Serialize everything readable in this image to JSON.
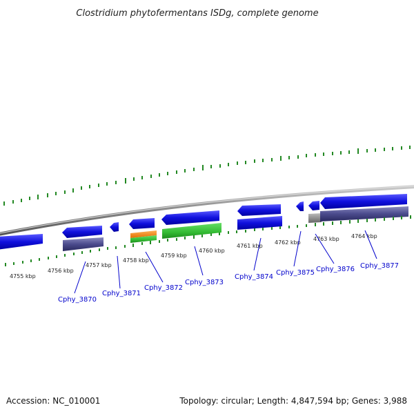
{
  "title": "Clostridium phytofermentans ISDg, complete genome",
  "footer": {
    "accession": "Accession: NC_010001",
    "summary": "Topology: circular; Length: 4,847,594 bp; Genes: 3,988"
  },
  "scale_labels": [
    "4755 kbp",
    "4756 kbp",
    "4757 kbp",
    "4758 kbp",
    "4759 kbp",
    "4760 kbp",
    "4761 kbp",
    "4762 kbp",
    "4763 kbp",
    "4764 kbp"
  ],
  "gene_labels": [
    "Cphy_3870",
    "Cphy_3871",
    "Cphy_3872",
    "Cphy_3873",
    "Cphy_3874",
    "Cphy_3875",
    "Cphy_3876",
    "Cphy_3877"
  ],
  "colors": {
    "forward_gene": "#1010dd",
    "cds_feature": "#4a4a8c",
    "green_feature": "#33bb33",
    "orange_feature": "#ff8800",
    "gray_feature": "#888888",
    "backbone": "#888888",
    "tick": "#228822",
    "label": "#0000cc"
  }
}
